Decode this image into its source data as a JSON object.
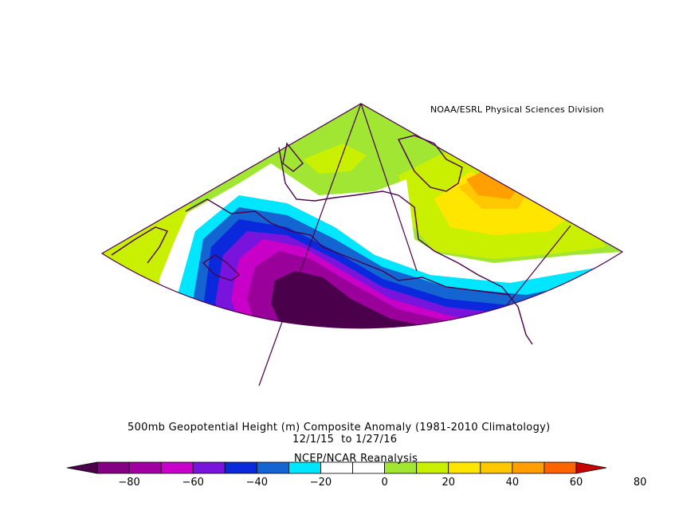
{
  "credit": "NOAA/ESRL Physical Sciences Division",
  "title": {
    "line1": "500mb Geopotential Height (m) Composite Anomaly (1981-2010 Climatology)",
    "line2": "12/1/15  to 1/27/16",
    "line3": "NCEP/NCAR Reanalysis"
  },
  "colorbar": {
    "min": -80,
    "max": 80,
    "step": 10,
    "labels": [
      "−80",
      "−60",
      "−40",
      "−20",
      "0",
      "20",
      "40",
      "60",
      "80"
    ],
    "colors": [
      "#820082",
      "#a000a0",
      "#c800c8",
      "#7814dc",
      "#0a28dc",
      "#1464d2",
      "#00e6ff",
      "#ffffff",
      "#ffffff",
      "#a0e632",
      "#c8f000",
      "#ffe600",
      "#ffc800",
      "#ffa000",
      "#ff6400"
    ],
    "low_end_color": "#4b004b",
    "high_end_color": "#c80000"
  },
  "map_colors": {
    "dark_purple": "#4b004b",
    "purple": "#9a009a",
    "magenta": "#c800c8",
    "violet": "#7814dc",
    "blue": "#0a28dc",
    "med_blue": "#1464d2",
    "cyan": "#00e6ff",
    "white": "#ffffff",
    "yellow_green": "#a0e632",
    "lime": "#c8f000",
    "yellow": "#ffe600",
    "gold": "#ffc800",
    "orange": "#ffa000",
    "coast": "#4b004b"
  }
}
